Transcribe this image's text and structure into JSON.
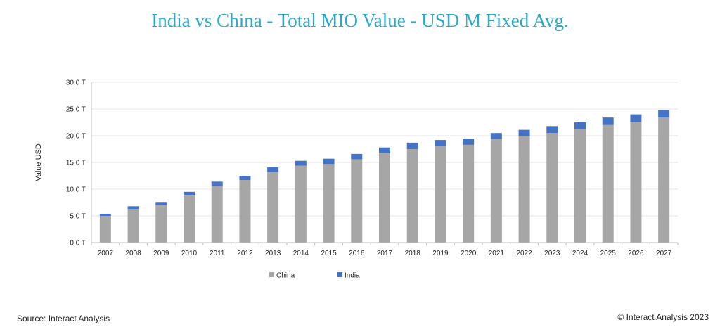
{
  "chart_data": {
    "type": "bar",
    "stacked": true,
    "title": "India vs China - Total MIO Value - USD M Fixed Avg.",
    "ylabel": "Value USD",
    "xlabel": "",
    "ylim": [
      0,
      30
    ],
    "y_ticks": [
      "0.0 T",
      "5.0 T",
      "10.0 T",
      "15.0 T",
      "20.0 T",
      "25.0 T",
      "30.0 T"
    ],
    "y_tick_values": [
      0,
      5,
      10,
      15,
      20,
      25,
      30
    ],
    "grid": true,
    "legend_position": "bottom",
    "categories": [
      "2007",
      "2008",
      "2009",
      "2010",
      "2011",
      "2012",
      "2013",
      "2014",
      "2015",
      "2016",
      "2017",
      "2018",
      "2019",
      "2020",
      "2021",
      "2022",
      "2023",
      "2024",
      "2025",
      "2026",
      "2027"
    ],
    "series": [
      {
        "name": "China",
        "color": "#a6a6a6",
        "values": [
          5.0,
          6.3,
          7.0,
          8.8,
          10.6,
          11.7,
          13.2,
          14.4,
          14.7,
          15.6,
          16.7,
          17.5,
          18.0,
          18.3,
          19.4,
          19.9,
          20.5,
          21.2,
          22.0,
          22.6,
          23.4
        ]
      },
      {
        "name": "India",
        "color": "#4472c4",
        "values": [
          0.4,
          0.5,
          0.6,
          0.7,
          0.8,
          0.8,
          0.9,
          0.9,
          1.0,
          1.0,
          1.1,
          1.2,
          1.2,
          1.1,
          1.1,
          1.2,
          1.3,
          1.3,
          1.4,
          1.4,
          1.4
        ]
      }
    ]
  },
  "footer": {
    "source": "Source: Interact Analysis",
    "copyright": "© Interact Analysis 2023"
  }
}
